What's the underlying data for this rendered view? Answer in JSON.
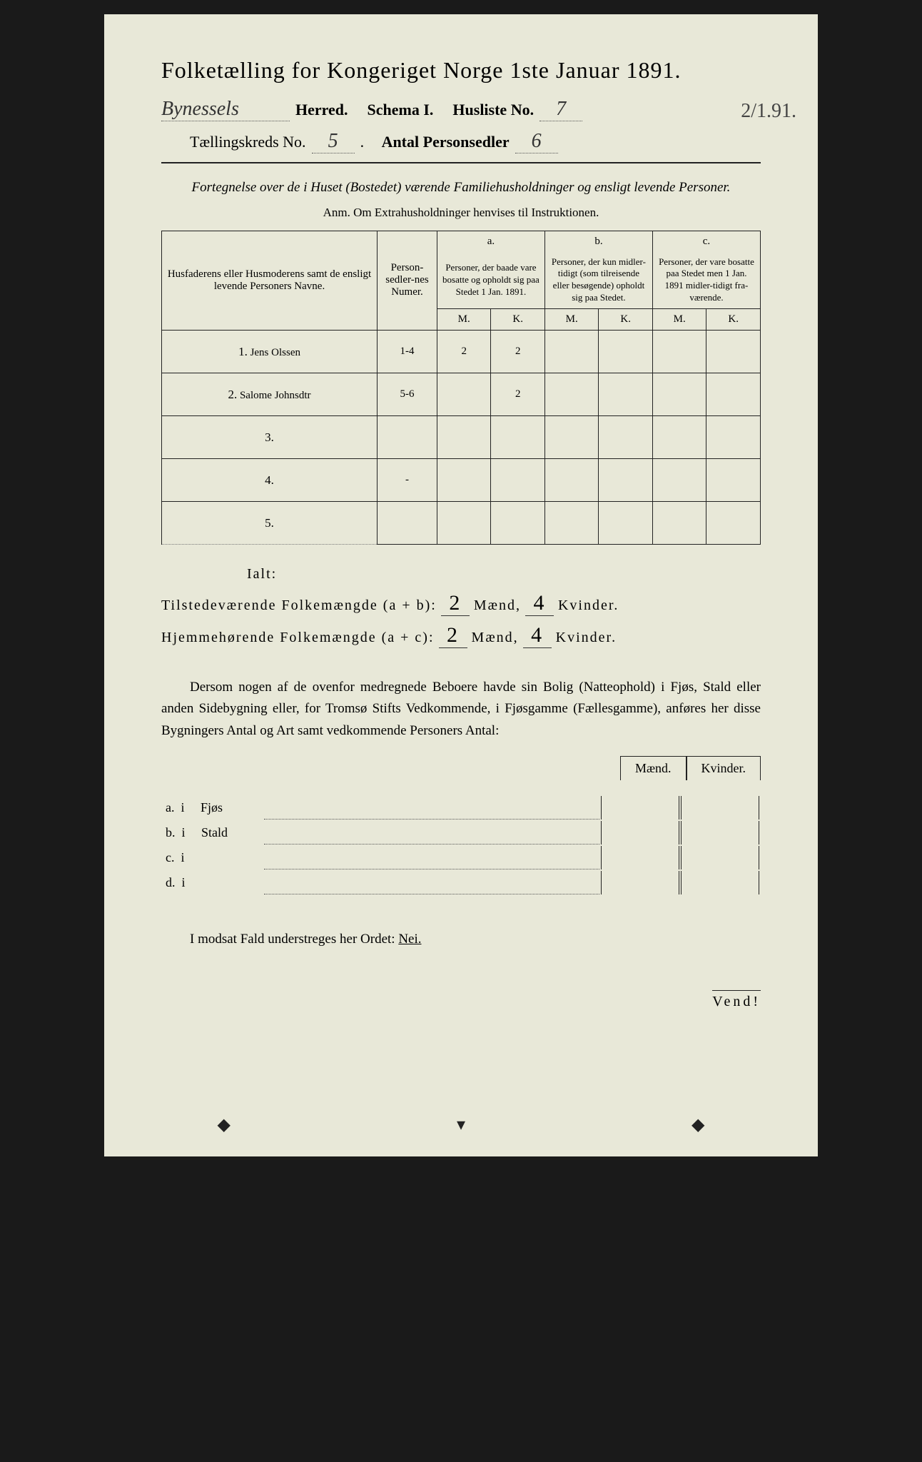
{
  "title": "Folketælling for Kongeriget Norge 1ste Januar 1891.",
  "side_date": "2/1.91.",
  "header": {
    "herred_value": "Bynessels",
    "herred_label": "Herred.",
    "schema_label": "Schema I.",
    "husliste_label": "Husliste No.",
    "husliste_value": "7",
    "kreds_label": "Tællingskreds No.",
    "kreds_value": "5",
    "antal_label": "Antal Personsedler",
    "antal_value": "6"
  },
  "intro": "Fortegnelse over de i Huset (Bostedet) værende Familiehusholdninger og ensligt levende Personer.",
  "anm": "Anm. Om Extrahusholdninger henvises til Instruktionen.",
  "table": {
    "col_names": "Husfaderens eller Husmoderens samt de ensligt levende Personers Navne.",
    "col_num": "Person-sedler-nes Numer.",
    "col_a_label": "a.",
    "col_a": "Personer, der baade vare bosatte og opholdt sig paa Stedet 1 Jan. 1891.",
    "col_b_label": "b.",
    "col_b": "Personer, der kun midler-tidigt (som tilreisende eller besøgende) opholdt sig paa Stedet.",
    "col_c_label": "c.",
    "col_c": "Personer, der vare bosatte paa Stedet men 1 Jan. 1891 midler-tidigt fra-værende.",
    "m": "M.",
    "k": "K.",
    "rows": [
      {
        "n": "1.",
        "name": "Jens Olssen",
        "num": "1-4",
        "am": "2",
        "ak": "2",
        "bm": "",
        "bk": "",
        "cm": "",
        "ck": ""
      },
      {
        "n": "2.",
        "name": "Salome Johnsdtr",
        "num": "5-6",
        "am": "",
        "ak": "2",
        "bm": "",
        "bk": "",
        "cm": "",
        "ck": ""
      },
      {
        "n": "3.",
        "name": "",
        "num": "",
        "am": "",
        "ak": "",
        "bm": "",
        "bk": "",
        "cm": "",
        "ck": ""
      },
      {
        "n": "4.",
        "name": "",
        "num": "-",
        "am": "",
        "ak": "",
        "bm": "",
        "bk": "",
        "cm": "",
        "ck": ""
      },
      {
        "n": "5.",
        "name": "",
        "num": "",
        "am": "",
        "ak": "",
        "bm": "",
        "bk": "",
        "cm": "",
        "ck": ""
      }
    ]
  },
  "totals": {
    "ialt": "Ialt:",
    "line1_label": "Tilstedeværende Folkemængde (a + b):",
    "line2_label": "Hjemmehørende Folkemængde (a + c):",
    "maend": "Mænd,",
    "kvinder": "Kvinder.",
    "t1_m": "2",
    "t1_k": "4",
    "t2_m": "2",
    "t2_k": "4"
  },
  "para": "Dersom nogen af de ovenfor medregnede Beboere havde sin Bolig (Natteophold) i Fjøs, Stald eller anden Sidebygning eller, for Tromsø Stifts Vedkommende, i Fjøsgamme (Fællesgamme), anføres her disse Bygningers Antal og Art samt vedkommende Personers Antal:",
  "sub": {
    "maend": "Mænd.",
    "kvinder": "Kvinder.",
    "rows": [
      {
        "label": "a.  i     Fjøs"
      },
      {
        "label": "b.  i     Stald"
      },
      {
        "label": "c.  i"
      },
      {
        "label": "d.  i"
      }
    ]
  },
  "nei_line": "I modsat Fald understreges her Ordet:",
  "nei": "Nei.",
  "vend": "Vend!"
}
